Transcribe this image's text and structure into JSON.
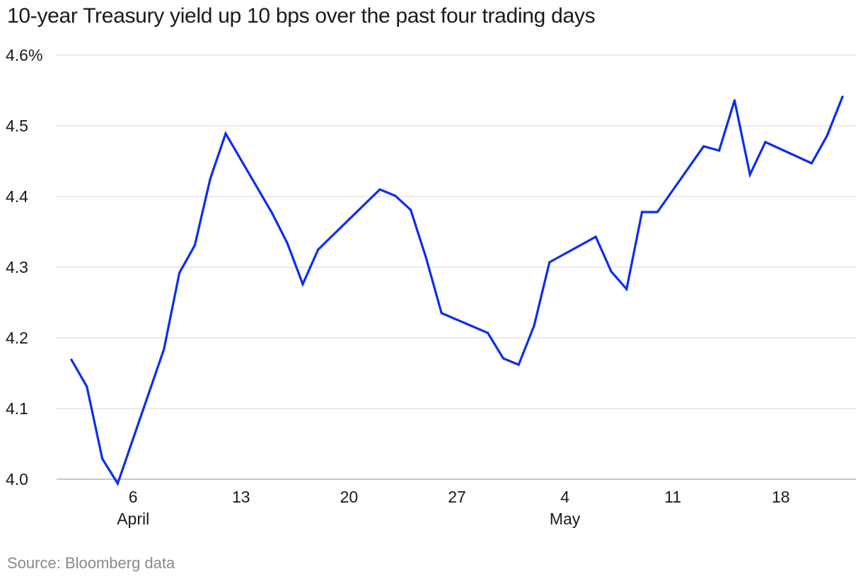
{
  "chart_data": {
    "type": "line",
    "title": "10-year Treasury yield up 10 bps over the past four trading days",
    "source": "Source: Bloomberg data",
    "xlabel": "",
    "ylabel": "",
    "ylim": [
      4.0,
      4.6
    ],
    "yticks": [
      {
        "value": 4.6,
        "label": "4.6%"
      },
      {
        "value": 4.5,
        "label": "4.5"
      },
      {
        "value": 4.4,
        "label": "4.4"
      },
      {
        "value": 4.3,
        "label": "4.3"
      },
      {
        "value": 4.2,
        "label": "4.2"
      },
      {
        "value": 4.1,
        "label": "4.1"
      },
      {
        "value": 4.0,
        "label": "4.0"
      }
    ],
    "xlim": [
      0,
      53
    ],
    "xticks": [
      {
        "day": 5,
        "label": "6",
        "month": "April"
      },
      {
        "day": 12,
        "label": "13",
        "month": ""
      },
      {
        "day": 19,
        "label": "20",
        "month": ""
      },
      {
        "day": 26,
        "label": "27",
        "month": ""
      },
      {
        "day": 33,
        "label": "4",
        "month": "May"
      },
      {
        "day": 40,
        "label": "11",
        "month": ""
      },
      {
        "day": 47,
        "label": "18",
        "month": ""
      }
    ],
    "color": "#0a2df0",
    "series": [
      {
        "name": "10-year Treasury yield",
        "x": [
          1,
          2,
          3,
          4,
          7,
          8,
          9,
          10,
          11,
          14,
          15,
          16,
          17,
          21,
          22,
          23,
          24,
          25,
          28,
          29,
          30,
          31,
          32,
          35,
          36,
          37,
          38,
          39,
          42,
          43,
          44,
          45,
          46,
          49,
          50,
          51
        ],
        "values": [
          4.169,
          4.131,
          4.029,
          3.994,
          4.184,
          4.292,
          4.331,
          4.425,
          4.489,
          4.377,
          4.334,
          4.276,
          4.325,
          4.41,
          4.401,
          4.381,
          4.313,
          4.235,
          4.207,
          4.171,
          4.162,
          4.217,
          4.307,
          4.343,
          4.294,
          4.269,
          4.378,
          4.378,
          4.471,
          4.465,
          4.536,
          4.431,
          4.477,
          4.447,
          4.486,
          4.541
        ]
      }
    ]
  }
}
